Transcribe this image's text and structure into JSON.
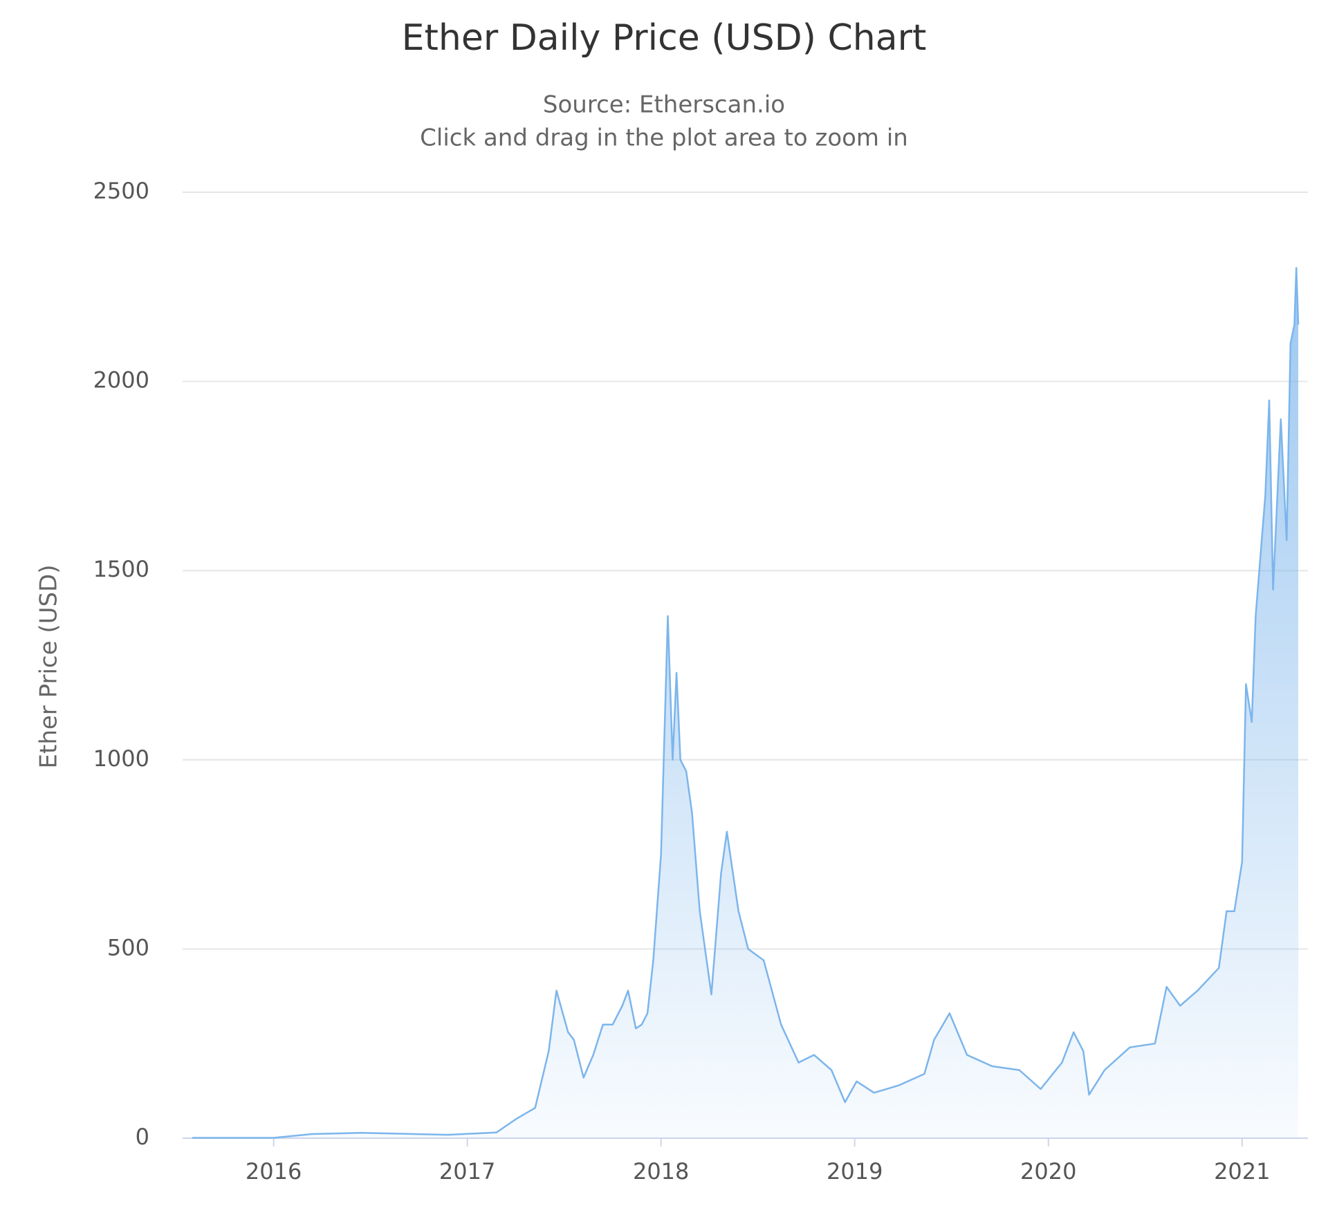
{
  "chart_data": {
    "type": "area",
    "title": "Ether Daily Price (USD) Chart",
    "subtitle": "Source: Etherscan.io",
    "subtitle2": "Click and drag in the plot area to zoom in",
    "y_label": "Ether Price (USD)",
    "color": "#7cb5ec",
    "x": [
      2015.58,
      2016.0,
      2016.2,
      2016.45,
      2016.9,
      2017.15,
      2017.25,
      2017.35,
      2017.42,
      2017.46,
      2017.52,
      2017.55,
      2017.6,
      2017.65,
      2017.7,
      2017.75,
      2017.8,
      2017.83,
      2017.87,
      2017.9,
      2017.93,
      2017.96,
      2018.0,
      2018.035,
      2018.06,
      2018.08,
      2018.1,
      2018.13,
      2018.16,
      2018.2,
      2018.26,
      2018.31,
      2018.34,
      2018.4,
      2018.45,
      2018.53,
      2018.62,
      2018.71,
      2018.79,
      2018.88,
      2018.95,
      2019.01,
      2019.1,
      2019.23,
      2019.36,
      2019.41,
      2019.49,
      2019.58,
      2019.71,
      2019.85,
      2019.96,
      2020.07,
      2020.13,
      2020.18,
      2020.21,
      2020.29,
      2020.42,
      2020.55,
      2020.61,
      2020.68,
      2020.77,
      2020.88,
      2020.92,
      2020.96,
      2021.0,
      2021.02,
      2021.05,
      2021.07,
      2021.12,
      2021.14,
      2021.16,
      2021.2,
      2021.23,
      2021.25,
      2021.27,
      2021.28,
      2021.29
    ],
    "values": [
      1,
      1,
      11,
      14,
      9,
      15,
      50,
      80,
      230,
      390,
      280,
      260,
      160,
      220,
      300,
      300,
      350,
      390,
      290,
      300,
      330,
      470,
      750,
      1380,
      1000,
      1230,
      1000,
      970,
      860,
      600,
      380,
      700,
      810,
      600,
      500,
      470,
      300,
      200,
      220,
      180,
      95,
      150,
      120,
      140,
      170,
      260,
      330,
      220,
      190,
      180,
      130,
      200,
      280,
      230,
      115,
      180,
      240,
      250,
      400,
      350,
      390,
      450,
      600,
      600,
      730,
      1200,
      1100,
      1380,
      1700,
      1950,
      1450,
      1900,
      1580,
      2100,
      2150,
      2300,
      2150
    ],
    "xlim": [
      2015.53,
      2021.34
    ],
    "xticks": [
      2016,
      2017,
      2018,
      2019,
      2020,
      2021
    ],
    "ylim": [
      0,
      2500
    ],
    "yticks": [
      0,
      500,
      1000,
      1500,
      2000,
      2500
    ],
    "grid": true
  }
}
